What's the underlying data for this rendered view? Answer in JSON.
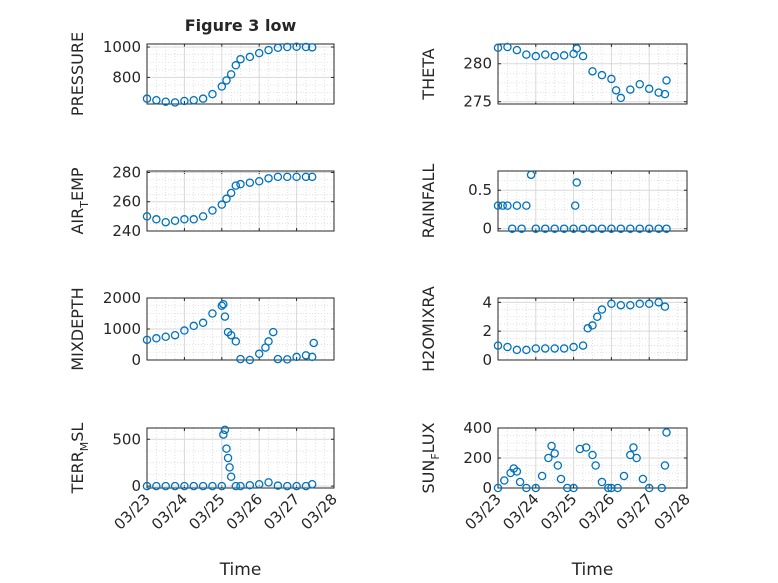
{
  "figure_title": "Figure 3 low",
  "colors": {
    "marker": "#0072BD",
    "axis": "#262626",
    "grid": "#d9d9d9",
    "background": "#ffffff"
  },
  "chart_data": [
    {
      "type": "scatter",
      "title": "Figure 3 low",
      "xlabel": "",
      "ylabel": "PRESSURE",
      "ylabel_parts": [
        "PRESSURE"
      ],
      "xlim": [
        "03/23",
        "03/28"
      ],
      "ylim": [
        625,
        1020
      ],
      "yticks": [
        800,
        1000
      ],
      "xticks": [
        "03/23",
        "03/24",
        "03/25",
        "03/26",
        "03/27",
        "03/28"
      ],
      "show_xticklabels": false,
      "grid": true,
      "minor_grid": true,
      "x": [
        "03/23",
        "03/23 06:00",
        "03/23 12:00",
        "03/23 18:00",
        "03/24",
        "03/24 06:00",
        "03/24 12:00",
        "03/24 18:00",
        "03/25",
        "03/25 03:00",
        "03/25 06:00",
        "03/25 09:00",
        "03/25 12:00",
        "03/25 18:00",
        "03/26",
        "03/26 06:00",
        "03/26 12:00",
        "03/26 18:00",
        "03/27",
        "03/27 06:00",
        "03/27 10:00"
      ],
      "values": [
        660,
        650,
        640,
        635,
        645,
        650,
        660,
        690,
        740,
        780,
        820,
        880,
        920,
        935,
        960,
        980,
        995,
        1000,
        1002,
        1000,
        998
      ]
    },
    {
      "type": "scatter",
      "xlabel": "",
      "ylabel": "THETA",
      "ylabel_parts": [
        "THETA"
      ],
      "xlim": [
        "03/23",
        "03/28"
      ],
      "ylim": [
        274.7,
        282.6
      ],
      "yticks": [
        275,
        280
      ],
      "xticks": [
        "03/23",
        "03/24",
        "03/25",
        "03/26",
        "03/27",
        "03/28"
      ],
      "show_xticklabels": false,
      "grid": true,
      "minor_grid": true,
      "x": [
        "03/23",
        "03/23 06:00",
        "03/23 12:00",
        "03/23 18:00",
        "03/24",
        "03/24 06:00",
        "03/24 12:00",
        "03/24 18:00",
        "03/25",
        "03/25 02:00",
        "03/25 06:00",
        "03/25 12:00",
        "03/25 18:00",
        "03/26",
        "03/26 03:00",
        "03/26 06:00",
        "03/26 12:00",
        "03/26 18:00",
        "03/27",
        "03/27 06:00",
        "03/27 10:00",
        "03/27 11:00"
      ],
      "values": [
        282.1,
        282.2,
        281.8,
        281.2,
        281.0,
        281.2,
        281.0,
        281.1,
        281.3,
        282.0,
        281.0,
        279.0,
        278.5,
        278.0,
        276.5,
        275.5,
        276.6,
        277.3,
        276.7,
        276.2,
        276.0,
        277.8
      ]
    },
    {
      "type": "scatter",
      "xlabel": "",
      "ylabel": "AIR_TEMP",
      "ylabel_parts": [
        "AIR",
        "T",
        "EMP"
      ],
      "xlim": [
        "03/23",
        "03/28"
      ],
      "ylim": [
        240,
        281
      ],
      "yticks": [
        240,
        260,
        280
      ],
      "xticks": [
        "03/23",
        "03/24",
        "03/25",
        "03/26",
        "03/27",
        "03/28"
      ],
      "show_xticklabels": false,
      "grid": true,
      "minor_grid": true,
      "x": [
        "03/23",
        "03/23 06:00",
        "03/23 12:00",
        "03/23 18:00",
        "03/24",
        "03/24 06:00",
        "03/24 12:00",
        "03/24 18:00",
        "03/25",
        "03/25 03:00",
        "03/25 06:00",
        "03/25 09:00",
        "03/25 12:00",
        "03/25 18:00",
        "03/26",
        "03/26 06:00",
        "03/26 12:00",
        "03/26 18:00",
        "03/27",
        "03/27 06:00",
        "03/27 10:00"
      ],
      "values": [
        250,
        248,
        246,
        247,
        248,
        248,
        250,
        254,
        258,
        262,
        266,
        271,
        272,
        273,
        274,
        276,
        277,
        277,
        277,
        277,
        277
      ]
    },
    {
      "type": "scatter",
      "xlabel": "",
      "ylabel": "RAINFALL",
      "ylabel_parts": [
        "RAINFALL"
      ],
      "xlim": [
        "03/23",
        "03/28"
      ],
      "ylim": [
        -0.03,
        0.75
      ],
      "yticks": [
        0,
        0.5
      ],
      "xticks": [
        "03/23",
        "03/24",
        "03/25",
        "03/26",
        "03/27",
        "03/28"
      ],
      "show_xticklabels": false,
      "grid": true,
      "minor_grid": true,
      "x": [
        "03/23",
        "03/23 03:00",
        "03/23 06:00",
        "03/23 09:00",
        "03/23 12:00",
        "03/23 15:00",
        "03/23 18:00",
        "03/23 21:00",
        "03/24",
        "03/24 06:00",
        "03/24 12:00",
        "03/24 18:00",
        "03/25",
        "03/25 01:00",
        "03/25 02:00",
        "03/25 06:00",
        "03/25 12:00",
        "03/25 18:00",
        "03/26",
        "03/26 06:00",
        "03/26 12:00",
        "03/26 18:00",
        "03/27",
        "03/27 06:00",
        "03/27 11:00"
      ],
      "values": [
        0.3,
        0.3,
        0.3,
        0.0,
        0.3,
        0.0,
        0.3,
        0.7,
        0.0,
        0.0,
        0.0,
        0.0,
        0.0,
        0.3,
        0.6,
        0.0,
        0.0,
        0.0,
        0.0,
        0.0,
        0.0,
        0.0,
        0.0,
        0.0,
        0.0
      ]
    },
    {
      "type": "scatter",
      "xlabel": "",
      "ylabel": "MIXDEPTH",
      "ylabel_parts": [
        "MIXDEPTH"
      ],
      "xlim": [
        "03/23",
        "03/28"
      ],
      "ylim": [
        0,
        2000
      ],
      "yticks": [
        0,
        1000,
        2000
      ],
      "xticks": [
        "03/23",
        "03/24",
        "03/25",
        "03/26",
        "03/27",
        "03/28"
      ],
      "show_xticklabels": false,
      "grid": true,
      "minor_grid": true,
      "x": [
        "03/23",
        "03/23 06:00",
        "03/23 12:00",
        "03/23 18:00",
        "03/24",
        "03/24 06:00",
        "03/24 12:00",
        "03/24 18:00",
        "03/25",
        "03/25 01:00",
        "03/25 02:00",
        "03/25 04:00",
        "03/25 06:00",
        "03/25 09:00",
        "03/25 12:00",
        "03/25 18:00",
        "03/26",
        "03/26 04:00",
        "03/26 06:00",
        "03/26 09:00",
        "03/26 12:00",
        "03/26 18:00",
        "03/27",
        "03/27 06:00",
        "03/27 10:00",
        "03/27 11:00"
      ],
      "values": [
        650,
        700,
        750,
        800,
        950,
        1100,
        1200,
        1500,
        1750,
        1800,
        1400,
        900,
        800,
        600,
        30,
        0,
        200,
        400,
        600,
        900,
        30,
        20,
        100,
        150,
        100,
        550
      ]
    },
    {
      "type": "scatter",
      "xlabel": "",
      "ylabel": "H2OMIXRA",
      "ylabel_parts": [
        "H2OMIXRA"
      ],
      "xlim": [
        "03/23",
        "03/28"
      ],
      "ylim": [
        0,
        4.3
      ],
      "yticks": [
        0,
        2,
        4
      ],
      "xticks": [
        "03/23",
        "03/24",
        "03/25",
        "03/26",
        "03/27",
        "03/28"
      ],
      "show_xticklabels": false,
      "grid": true,
      "minor_grid": true,
      "x": [
        "03/23",
        "03/23 06:00",
        "03/23 12:00",
        "03/23 18:00",
        "03/24",
        "03/24 06:00",
        "03/24 12:00",
        "03/24 18:00",
        "03/25",
        "03/25 06:00",
        "03/25 09:00",
        "03/25 12:00",
        "03/25 15:00",
        "03/25 18:00",
        "03/26",
        "03/26 06:00",
        "03/26 12:00",
        "03/26 18:00",
        "03/27",
        "03/27 06:00",
        "03/27 10:00"
      ],
      "values": [
        1.0,
        0.9,
        0.7,
        0.7,
        0.8,
        0.8,
        0.8,
        0.8,
        0.9,
        1.0,
        2.2,
        2.4,
        3.0,
        3.5,
        3.9,
        3.8,
        3.8,
        3.9,
        3.9,
        4.0,
        3.7
      ]
    },
    {
      "type": "scatter",
      "xlabel": "Time",
      "ylabel": "TERR_MSL",
      "ylabel_parts": [
        "TERR",
        "M",
        "SL"
      ],
      "xlim": [
        "03/23",
        "03/28"
      ],
      "ylim": [
        -20,
        620
      ],
      "yticks": [
        0,
        500
      ],
      "xticks": [
        "03/23",
        "03/24",
        "03/25",
        "03/26",
        "03/27",
        "03/28"
      ],
      "show_xticklabels": true,
      "grid": true,
      "minor_grid": true,
      "x": [
        "03/23",
        "03/23 06:00",
        "03/23 12:00",
        "03/23 18:00",
        "03/24",
        "03/24 06:00",
        "03/24 12:00",
        "03/24 18:00",
        "03/25",
        "03/25 01:00",
        "03/25 02:00",
        "03/25 03:00",
        "03/25 04:00",
        "03/25 05:00",
        "03/25 06:00",
        "03/25 09:00",
        "03/25 12:00",
        "03/25 18:00",
        "03/26",
        "03/26 06:00",
        "03/26 12:00",
        "03/26 18:00",
        "03/27",
        "03/27 06:00",
        "03/27 10:00"
      ],
      "values": [
        0,
        0,
        0,
        0,
        0,
        0,
        0,
        0,
        0,
        550,
        600,
        400,
        300,
        200,
        100,
        0,
        0,
        10,
        20,
        40,
        5,
        0,
        0,
        0,
        20
      ]
    },
    {
      "type": "scatter",
      "xlabel": "Time",
      "ylabel": "SUN_FLUX",
      "ylabel_parts": [
        "SUN",
        "F",
        "LUX"
      ],
      "xlim": [
        "03/23",
        "03/28"
      ],
      "ylim": [
        0,
        400
      ],
      "yticks": [
        0,
        200,
        400
      ],
      "xticks": [
        "03/23",
        "03/24",
        "03/25",
        "03/26",
        "03/27",
        "03/28"
      ],
      "show_xticklabels": true,
      "grid": true,
      "minor_grid": true,
      "x": [
        "03/23",
        "03/23 04:00",
        "03/23 08:00",
        "03/23 10:00",
        "03/23 12:00",
        "03/23 14:00",
        "03/23 18:00",
        "03/24",
        "03/24 04:00",
        "03/24 08:00",
        "03/24 10:00",
        "03/24 12:00",
        "03/24 14:00",
        "03/24 16:00",
        "03/24 20:00",
        "03/25",
        "03/25 04:00",
        "03/25 08:00",
        "03/25 12:00",
        "03/25 14:00",
        "03/25 18:00",
        "03/25 22:00",
        "03/26",
        "03/26 04:00",
        "03/26 08:00",
        "03/26 12:00",
        "03/26 14:00",
        "03/26 16:00",
        "03/26 20:00",
        "03/27",
        "03/27 08:00",
        "03/27 10:00",
        "03/27 11:00"
      ],
      "values": [
        0,
        50,
        100,
        130,
        110,
        40,
        0,
        0,
        80,
        200,
        280,
        230,
        150,
        60,
        0,
        0,
        260,
        270,
        220,
        150,
        40,
        0,
        0,
        0,
        80,
        220,
        270,
        200,
        60,
        0,
        0,
        150,
        370
      ]
    }
  ]
}
